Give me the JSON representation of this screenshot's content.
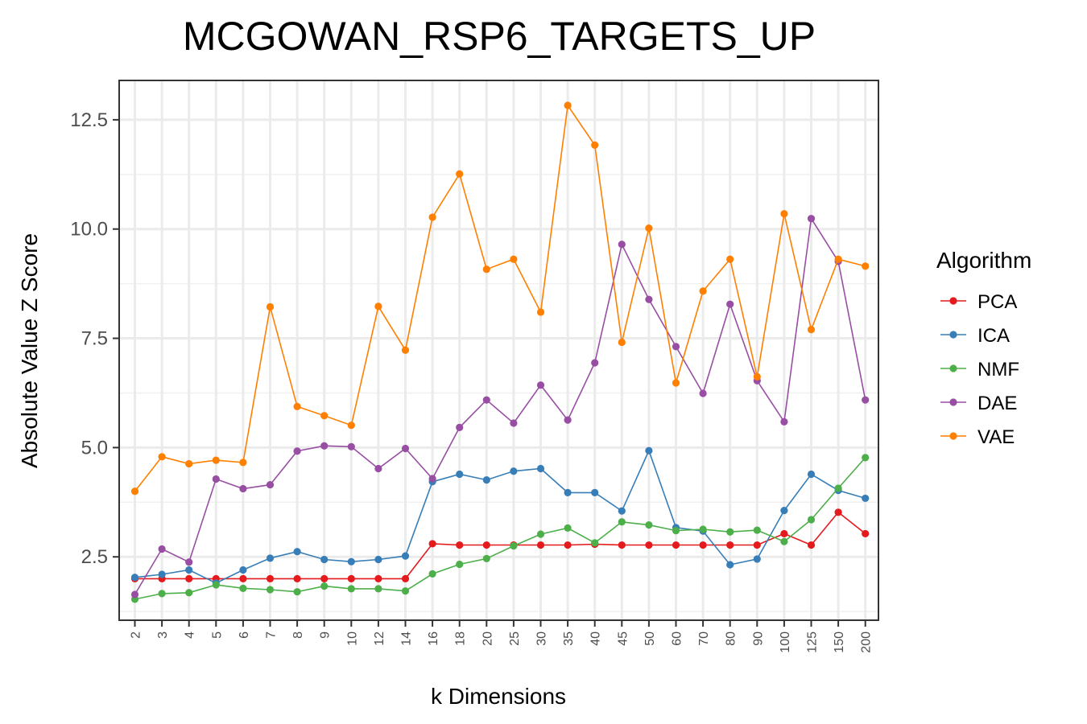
{
  "chart_data": {
    "type": "line",
    "title": "MCGOWAN_RSP6_TARGETS_UP",
    "xlabel": "k Dimensions",
    "ylabel": "Absolute Value Z Score",
    "categories": [
      "2",
      "3",
      "4",
      "5",
      "6",
      "7",
      "8",
      "9",
      "10",
      "12",
      "14",
      "16",
      "18",
      "20",
      "25",
      "30",
      "35",
      "40",
      "45",
      "50",
      "60",
      "70",
      "80",
      "90",
      "100",
      "125",
      "150",
      "200"
    ],
    "ylim": [
      1.05,
      13.4
    ],
    "yticks": [
      2.5,
      5.0,
      7.5,
      10.0,
      12.5
    ],
    "ytick_labels": [
      "2.5",
      "5.0",
      "7.5",
      "10.0",
      "12.5"
    ],
    "grid": true,
    "legend": {
      "title": "Algorithm",
      "position": "right"
    },
    "series": [
      {
        "name": "PCA",
        "color": "#E41A1C",
        "values": [
          2.0,
          2.0,
          2.0,
          2.0,
          2.0,
          2.0,
          2.0,
          2.0,
          2.0,
          2.0,
          2.0,
          2.8,
          2.77,
          2.77,
          2.77,
          2.77,
          2.77,
          2.79,
          2.77,
          2.77,
          2.77,
          2.77,
          2.77,
          2.77,
          3.03,
          2.77,
          3.52,
          3.03
        ]
      },
      {
        "name": "ICA",
        "color": "#377EB8",
        "values": [
          2.03,
          2.1,
          2.2,
          1.9,
          2.2,
          2.47,
          2.62,
          2.44,
          2.39,
          2.44,
          2.52,
          4.22,
          4.39,
          4.26,
          4.46,
          4.52,
          3.97,
          3.97,
          3.55,
          4.93,
          3.17,
          3.09,
          2.32,
          2.45,
          3.56,
          4.39,
          4.02,
          3.84
        ]
      },
      {
        "name": "NMF",
        "color": "#4DAF4A",
        "values": [
          1.53,
          1.66,
          1.68,
          1.86,
          1.78,
          1.75,
          1.7,
          1.83,
          1.77,
          1.77,
          1.72,
          2.11,
          2.33,
          2.46,
          2.75,
          3.02,
          3.16,
          2.82,
          3.3,
          3.23,
          3.1,
          3.13,
          3.07,
          3.11,
          2.85,
          3.35,
          4.07,
          4.77
        ]
      },
      {
        "name": "DAE",
        "color": "#984EA3",
        "values": [
          1.64,
          2.68,
          2.38,
          4.28,
          4.06,
          4.15,
          4.92,
          5.04,
          5.02,
          4.52,
          4.98,
          4.29,
          5.46,
          6.09,
          5.56,
          6.43,
          5.63,
          6.94,
          9.65,
          8.39,
          7.31,
          6.24,
          8.28,
          6.53,
          5.59,
          10.24,
          9.26,
          6.09
        ]
      },
      {
        "name": "VAE",
        "color": "#FF7F00",
        "values": [
          4.0,
          4.79,
          4.63,
          4.71,
          4.66,
          8.22,
          5.94,
          5.73,
          5.51,
          8.23,
          7.23,
          10.27,
          11.26,
          9.08,
          9.31,
          8.1,
          12.83,
          11.92,
          7.41,
          10.02,
          6.48,
          8.58,
          9.31,
          6.62,
          10.35,
          7.7,
          9.31,
          9.15
        ]
      }
    ]
  }
}
